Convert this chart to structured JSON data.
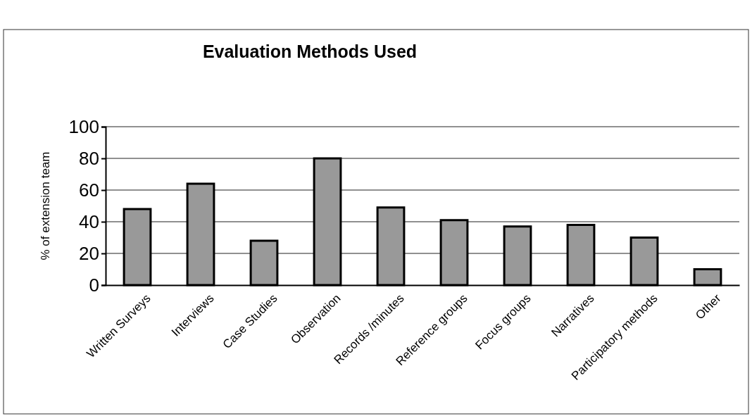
{
  "chart_data": {
    "type": "bar",
    "title": "Evaluation Methods Used",
    "ylabel": "% of extension team",
    "categories": [
      "Written Surveys",
      "Interviews",
      "Case Studies",
      "Observation",
      "Records /minutes",
      "Reference groups",
      "Focus groups",
      "Narratives",
      "Participatory methods",
      "Other"
    ],
    "values": [
      48,
      64,
      28,
      80,
      49,
      41,
      37,
      38,
      30,
      10
    ],
    "color": "#999999",
    "ylim": [
      0,
      100
    ],
    "yticks": [
      0,
      20,
      40,
      60,
      80,
      100
    ],
    "grid": "y"
  }
}
